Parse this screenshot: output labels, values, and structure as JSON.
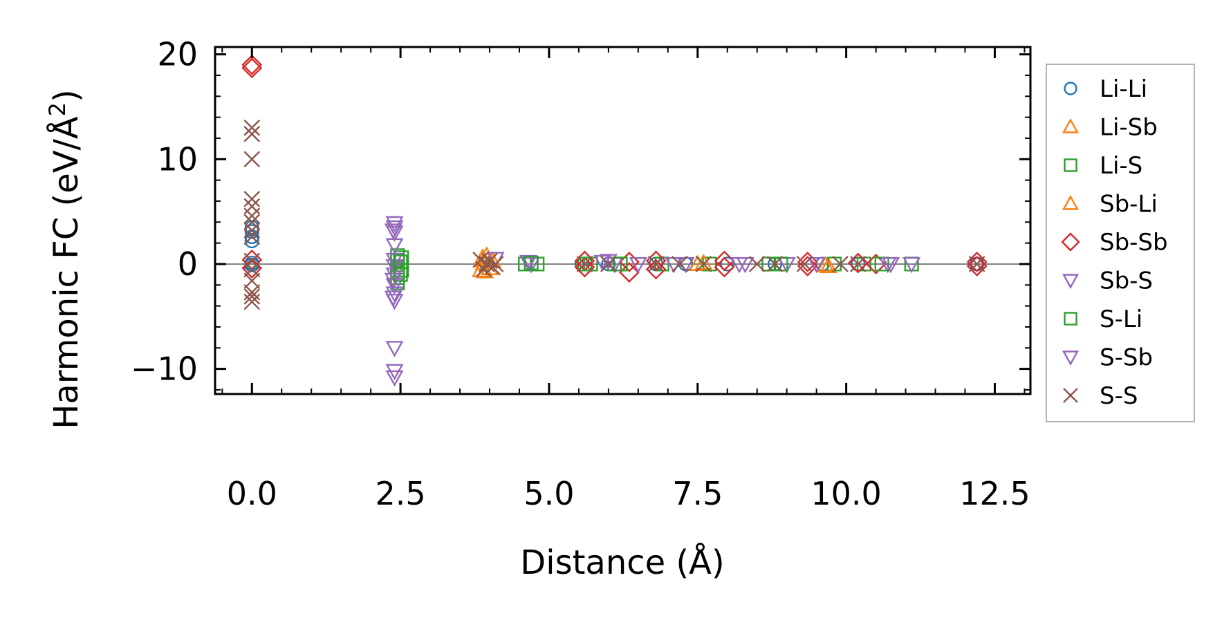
{
  "chart_data": {
    "type": "scatter",
    "title": "",
    "xlabel": "Distance (Å)",
    "ylabel": "Harmonic FC (eV/Å²)",
    "ylabel_main": "Harmonic FC (eV/Å",
    "ylabel_sup": "2",
    "ylabel_end": ")",
    "xlim": [
      -0.62,
      13.1
    ],
    "ylim": [
      -12.4,
      20.7
    ],
    "xticks": [
      0.0,
      2.5,
      5.0,
      7.5,
      10.0,
      12.5
    ],
    "xtick_labels": [
      "0.0",
      "2.5",
      "5.0",
      "7.5",
      "10.0",
      "12.5"
    ],
    "yticks": [
      -10,
      0,
      10,
      20
    ],
    "ytick_labels": [
      "−10",
      "0",
      "10",
      "20"
    ],
    "hline": 0,
    "grid": false,
    "legend_position": "right-outside",
    "series": [
      {
        "name": "Li-Li",
        "marker": "circle",
        "color": "#1f77b4",
        "points": [
          [
            0,
            3.5
          ],
          [
            0,
            3.1
          ],
          [
            0,
            2.6
          ],
          [
            0,
            2.2
          ],
          [
            0,
            0.1
          ],
          [
            0,
            -0.1
          ],
          [
            3.95,
            0
          ],
          [
            5.55,
            0
          ],
          [
            6.0,
            0
          ],
          [
            6.8,
            0
          ],
          [
            7.3,
            0
          ],
          [
            8.0,
            0
          ],
          [
            8.8,
            0
          ],
          [
            9.6,
            0
          ],
          [
            10.2,
            0
          ],
          [
            12.2,
            0
          ]
        ]
      },
      {
        "name": "Li-Sb",
        "marker": "triangle-up",
        "color": "#ff7f0e",
        "points": [
          [
            3.88,
            0.6
          ],
          [
            3.85,
            -0.6
          ],
          [
            3.95,
            0.8
          ],
          [
            4.0,
            -0.4
          ],
          [
            3.9,
            0.1
          ],
          [
            7.5,
            0
          ],
          [
            9.7,
            -0.2
          ]
        ]
      },
      {
        "name": "Li-S",
        "marker": "square",
        "color": "#2ca02c",
        "points": [
          [
            2.45,
            0.8
          ],
          [
            2.45,
            0.3
          ],
          [
            2.45,
            -0.3
          ],
          [
            2.45,
            -0.8
          ],
          [
            2.45,
            -1.3
          ],
          [
            2.45,
            -1.8
          ],
          [
            2.52,
            0.6
          ],
          [
            2.52,
            -0.6
          ],
          [
            4.6,
            0
          ],
          [
            4.8,
            0
          ],
          [
            5.6,
            0
          ],
          [
            6.1,
            0
          ],
          [
            6.9,
            0
          ],
          [
            7.7,
            0
          ],
          [
            8.7,
            0
          ],
          [
            9.8,
            0
          ],
          [
            10.3,
            0
          ],
          [
            11.1,
            0
          ]
        ]
      },
      {
        "name": "Sb-Li",
        "marker": "triangle-up",
        "color": "#ff7f0e",
        "points": [
          [
            3.9,
            0.4
          ],
          [
            3.92,
            -0.7
          ],
          [
            4.05,
            0.3
          ],
          [
            7.6,
            0.1
          ],
          [
            9.65,
            -0.1
          ]
        ]
      },
      {
        "name": "Sb-Sb",
        "marker": "diamond",
        "color": "#d62728",
        "points": [
          [
            0,
            19.0
          ],
          [
            0,
            18.7
          ],
          [
            0,
            0.4
          ],
          [
            0,
            -0.4
          ],
          [
            5.6,
            0.3
          ],
          [
            5.6,
            -0.3
          ],
          [
            6.35,
            -0.8
          ],
          [
            6.35,
            0.2
          ],
          [
            6.8,
            0.3
          ],
          [
            6.8,
            -0.5
          ],
          [
            7.95,
            0.3
          ],
          [
            7.95,
            -0.3
          ],
          [
            9.35,
            0.2
          ],
          [
            9.35,
            -0.2
          ],
          [
            10.2,
            0.1
          ],
          [
            10.5,
            0
          ],
          [
            12.2,
            0.2
          ],
          [
            12.2,
            -0.2
          ]
        ]
      },
      {
        "name": "Sb-S",
        "marker": "triangle-down",
        "color": "#9467bd",
        "points": [
          [
            2.4,
            3.9
          ],
          [
            2.4,
            3.5
          ],
          [
            2.4,
            3.0
          ],
          [
            2.4,
            1.8
          ],
          [
            2.4,
            0.4
          ],
          [
            2.4,
            -0.2
          ],
          [
            2.4,
            -1.0
          ],
          [
            2.4,
            -2.0
          ],
          [
            2.4,
            -2.8
          ],
          [
            2.4,
            -3.5
          ],
          [
            2.4,
            -8.0
          ],
          [
            2.4,
            -10.2
          ],
          [
            2.4,
            -10.8
          ],
          [
            4.65,
            0.2
          ],
          [
            4.7,
            0
          ],
          [
            6.0,
            0.3
          ],
          [
            6.1,
            0
          ],
          [
            7.1,
            0
          ],
          [
            8.2,
            0
          ],
          [
            9.0,
            0
          ],
          [
            10.7,
            0
          ],
          [
            11.1,
            0
          ]
        ]
      },
      {
        "name": "S-Li",
        "marker": "square",
        "color": "#2ca02c",
        "points": [
          [
            2.5,
            0.2
          ],
          [
            2.5,
            -1.0
          ],
          [
            4.7,
            0.1
          ],
          [
            5.7,
            0
          ],
          [
            6.2,
            0
          ],
          [
            8.9,
            0
          ],
          [
            10.6,
            0
          ]
        ]
      },
      {
        "name": "S-Sb",
        "marker": "triangle-down",
        "color": "#9467bd",
        "points": [
          [
            2.38,
            3.2
          ],
          [
            2.38,
            -1.5
          ],
          [
            2.38,
            -3.2
          ],
          [
            4.1,
            0.5
          ],
          [
            5.9,
            0.2
          ],
          [
            6.5,
            0
          ],
          [
            7.3,
            0
          ],
          [
            8.3,
            0
          ],
          [
            9.5,
            0
          ],
          [
            10.75,
            0
          ]
        ]
      },
      {
        "name": "S-S",
        "marker": "x",
        "color": "#8c564b",
        "points": [
          [
            0,
            13.0
          ],
          [
            0,
            12.4
          ],
          [
            0,
            10.0
          ],
          [
            0,
            6.2
          ],
          [
            0,
            5.5
          ],
          [
            0,
            4.6
          ],
          [
            0,
            4.0
          ],
          [
            0,
            3.2
          ],
          [
            0,
            2.6
          ],
          [
            0,
            0.3
          ],
          [
            0,
            -0.5
          ],
          [
            0,
            -1.6
          ],
          [
            0,
            -2.7
          ],
          [
            0,
            -3.1
          ],
          [
            0,
            -3.6
          ],
          [
            3.85,
            0.4
          ],
          [
            3.9,
            -0.5
          ],
          [
            3.95,
            0
          ],
          [
            4.0,
            0.3
          ],
          [
            4.05,
            -0.3
          ],
          [
            4.1,
            0
          ],
          [
            5.6,
            0
          ],
          [
            6.0,
            0
          ],
          [
            6.8,
            0
          ],
          [
            7.2,
            0
          ],
          [
            7.6,
            0
          ],
          [
            8.5,
            0
          ],
          [
            8.8,
            0
          ],
          [
            9.3,
            0
          ],
          [
            9.9,
            0
          ],
          [
            10.2,
            0
          ],
          [
            12.2,
            0
          ]
        ]
      }
    ]
  }
}
